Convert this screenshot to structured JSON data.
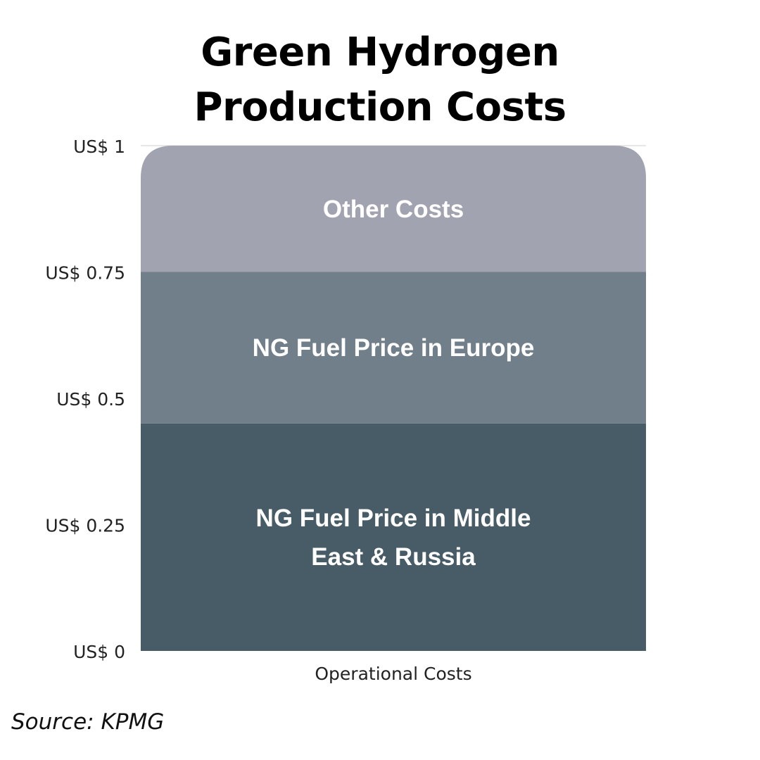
{
  "title_lines": [
    "Green Hydrogen",
    "Production Costs"
  ],
  "source": "Source: KPMG",
  "chart_data": {
    "type": "bar",
    "stacked": true,
    "title": "Green Hydrogen Production Costs",
    "categories": [
      "Operational Costs"
    ],
    "xlabel": "Operational Costs",
    "ylim": [
      0,
      1
    ],
    "y_ticks": [
      {
        "value": 0,
        "label": "US$ 0"
      },
      {
        "value": 0.25,
        "label": "US$ 0.25"
      },
      {
        "value": 0.5,
        "label": "US$ 0.5"
      },
      {
        "value": 0.75,
        "label": "US$ 0.75"
      },
      {
        "value": 1,
        "label": "US$ 1"
      }
    ],
    "grid": true,
    "series": [
      {
        "name": "NG Fuel Price in Middle East & Russia",
        "label_lines": [
          "NG Fuel Price in Middle",
          "East & Russia"
        ],
        "values": [
          0.45
        ],
        "color": "#475c67"
      },
      {
        "name": "NG Fuel Price in Europe",
        "label_lines": [
          "NG Fuel Price in Europe"
        ],
        "values": [
          0.3
        ],
        "color": "#717f8a"
      },
      {
        "name": "Other Costs",
        "label_lines": [
          "Other Costs"
        ],
        "values": [
          0.25
        ],
        "color": "#a2a3b0"
      }
    ]
  }
}
